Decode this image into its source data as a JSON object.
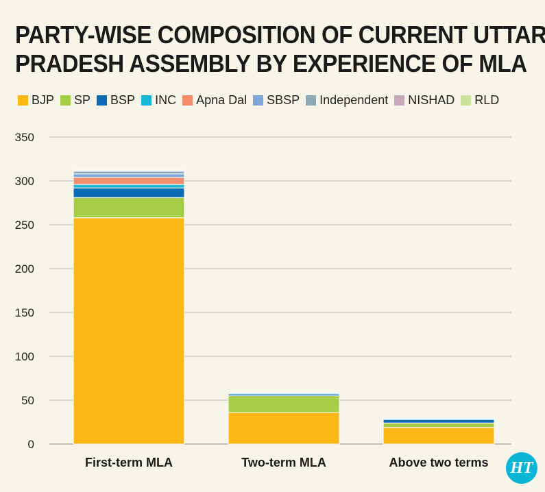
{
  "title_line1": "PARTY-WISE COMPOSITION OF CURRENT UTTAR",
  "title_line2": "PRADESH ASSEMBLY BY EXPERIENCE OF MLA",
  "logo_text": "HT",
  "colors": {
    "background": "#f7f4e9",
    "grid": "#9a9a9a"
  },
  "chart_data": {
    "type": "bar",
    "stacked": true,
    "categories": [
      "First-term MLA",
      "Two-term MLA",
      "Above two terms"
    ],
    "ylim": [
      0,
      350
    ],
    "yticks": [
      0,
      50,
      100,
      150,
      200,
      250,
      300,
      350
    ],
    "grid": true,
    "legend_position": "top",
    "series": [
      {
        "name": "BJP",
        "color": "#fbb714",
        "values": [
          258,
          36,
          19
        ]
      },
      {
        "name": "SP",
        "color": "#a5cd45",
        "values": [
          23,
          19,
          5
        ]
      },
      {
        "name": "BSP",
        "color": "#0b6bb5",
        "values": [
          11,
          2,
          4
        ]
      },
      {
        "name": "INC",
        "color": "#19b8d6",
        "values": [
          4,
          1,
          1
        ]
      },
      {
        "name": "Apna Dal",
        "color": "#f48d6c",
        "values": [
          8,
          0,
          0
        ]
      },
      {
        "name": "SBSP",
        "color": "#7ea6d8",
        "values": [
          4,
          0,
          0
        ]
      },
      {
        "name": "Independent",
        "color": "#8ea9b3",
        "values": [
          3,
          0,
          0
        ]
      },
      {
        "name": "NISHAD",
        "color": "#c9a7bc",
        "values": [
          1,
          0,
          0
        ]
      },
      {
        "name": "RLD",
        "color": "#cbe29a",
        "values": [
          1,
          0,
          0
        ]
      }
    ]
  }
}
